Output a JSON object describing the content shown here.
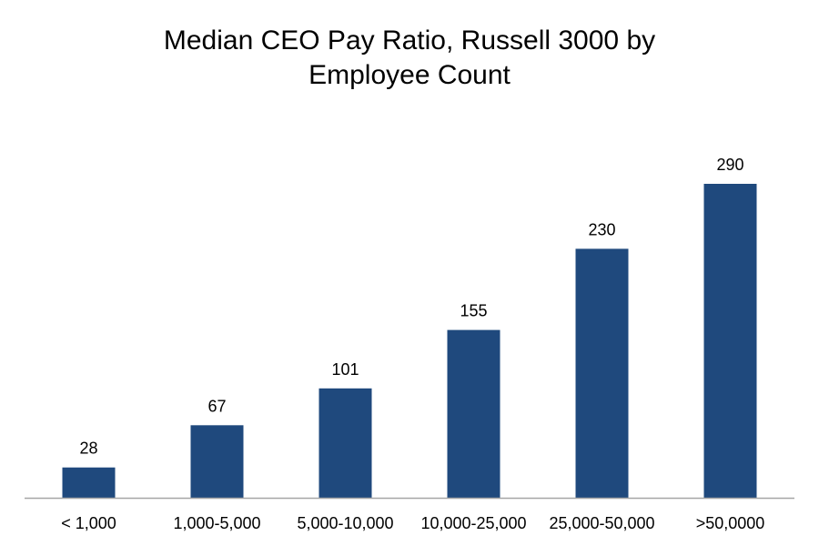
{
  "chart_data": {
    "type": "bar",
    "title_lines": [
      "Median CEO Pay Ratio, Russell 3000 by",
      "Employee Count"
    ],
    "categories": [
      "< 1,000",
      "1,000-5,000",
      "5,000-10,000",
      "10,000-25,000",
      "25,000-50,000",
      ">50,0000"
    ],
    "values": [
      28,
      67,
      101,
      155,
      230,
      290
    ],
    "xlabel": "",
    "ylabel": "",
    "ylim": [
      0,
      290
    ],
    "grid": false,
    "legend": "none",
    "bar_color": "#1F497D",
    "axis_color": "#A6A6A6"
  }
}
